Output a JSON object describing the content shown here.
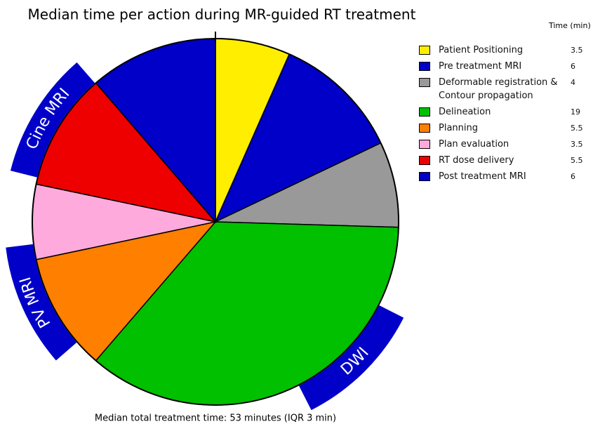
{
  "chart_data": {
    "type": "pie",
    "title": "Median time per action during MR-guided RT treatment",
    "legend_title": "Time (min)",
    "categories": [
      "Patient Positioning",
      "Pre treatment MRI",
      "Deformable registration & Contour propagation",
      "Delineation",
      "Planning",
      "Plan evaluation",
      "RT dose delivery",
      "Post treatment MRI"
    ],
    "values": [
      3.5,
      6,
      4,
      19,
      5.5,
      3.5,
      5.5,
      6
    ],
    "colors": [
      "#ffee00",
      "#0000c8",
      "#999999",
      "#00c000",
      "#ff7f00",
      "#ffaadd",
      "#ee0000",
      "#0000c8"
    ],
    "annotations": [
      "Cine MRI",
      "PV MRI",
      "DWI"
    ],
    "footnote": "Median total treatment time: 53 minutes (IQR 3 min)"
  }
}
